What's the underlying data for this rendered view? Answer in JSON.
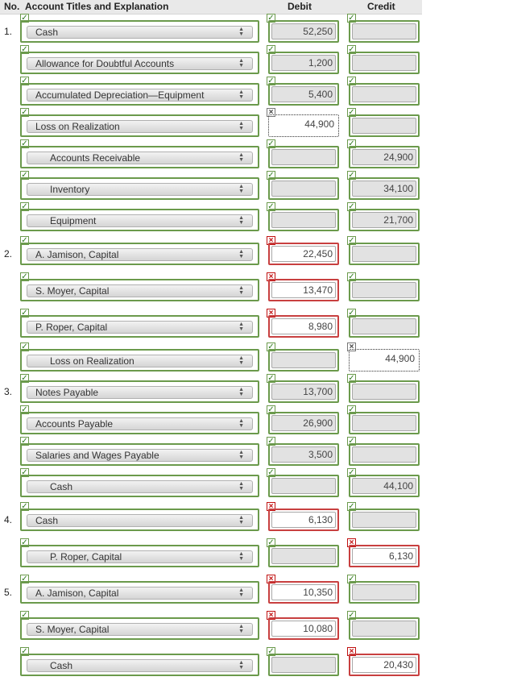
{
  "header": {
    "no": "No.",
    "titles": "Account Titles and Explanation",
    "debit": "Debit",
    "credit": "Credit"
  },
  "colors": {
    "ok": "#6b9a4c",
    "error": "#c84040"
  },
  "icons": {
    "ok": "checkmark-icon",
    "error": "x-mark-icon",
    "select": "select-arrows-icon"
  },
  "rows": [
    {
      "num": "1.",
      "account": "Cash",
      "indent": false,
      "debit": "52,250",
      "credit": "",
      "acct_status": "ok",
      "debit_status": "ok",
      "credit_status": "ok"
    },
    {
      "num": "",
      "account": "Allowance for Doubtful Accounts",
      "indent": false,
      "debit": "1,200",
      "credit": "",
      "acct_status": "ok",
      "debit_status": "ok",
      "credit_status": "ok"
    },
    {
      "num": "",
      "account": "Accumulated Depreciation—Equipment",
      "indent": false,
      "debit": "5,400",
      "credit": "",
      "acct_status": "ok",
      "debit_status": "ok",
      "credit_status": "ok"
    },
    {
      "num": "",
      "account": "Loss on Realization",
      "indent": false,
      "debit": "44,900",
      "credit": "",
      "acct_status": "ok",
      "debit_status": "partial",
      "credit_status": "ok"
    },
    {
      "num": "",
      "account": "Accounts Receivable",
      "indent": true,
      "debit": "",
      "credit": "24,900",
      "acct_status": "ok",
      "debit_status": "ok",
      "credit_status": "ok"
    },
    {
      "num": "",
      "account": "Inventory",
      "indent": true,
      "debit": "",
      "credit": "34,100",
      "acct_status": "ok",
      "debit_status": "ok",
      "credit_status": "ok"
    },
    {
      "num": "",
      "account": "Equipment",
      "indent": true,
      "debit": "",
      "credit": "21,700",
      "acct_status": "ok",
      "debit_status": "ok",
      "credit_status": "ok"
    },
    {
      "num": "2.",
      "account": "A. Jamison, Capital",
      "indent": false,
      "debit": "22,450",
      "credit": "",
      "acct_status": "ok",
      "debit_status": "error",
      "credit_status": "ok"
    },
    {
      "num": "",
      "account": "S. Moyer, Capital",
      "indent": false,
      "debit": "13,470",
      "credit": "",
      "acct_status": "ok",
      "debit_status": "error",
      "credit_status": "ok"
    },
    {
      "num": "",
      "account": "P. Roper, Capital",
      "indent": false,
      "debit": "8,980",
      "credit": "",
      "acct_status": "ok",
      "debit_status": "error",
      "credit_status": "ok"
    },
    {
      "num": "",
      "account": "Loss on Realization",
      "indent": true,
      "debit": "",
      "credit": "44,900",
      "acct_status": "ok",
      "debit_status": "ok",
      "credit_status": "partial"
    },
    {
      "num": "3.",
      "account": "Notes Payable",
      "indent": false,
      "debit": "13,700",
      "credit": "",
      "acct_status": "ok",
      "debit_status": "ok",
      "credit_status": "ok"
    },
    {
      "num": "",
      "account": "Accounts Payable",
      "indent": false,
      "debit": "26,900",
      "credit": "",
      "acct_status": "ok",
      "debit_status": "ok",
      "credit_status": "ok"
    },
    {
      "num": "",
      "account": "Salaries and Wages Payable",
      "indent": false,
      "debit": "3,500",
      "credit": "",
      "acct_status": "ok",
      "debit_status": "ok",
      "credit_status": "ok"
    },
    {
      "num": "",
      "account": "Cash",
      "indent": true,
      "debit": "",
      "credit": "44,100",
      "acct_status": "ok",
      "debit_status": "ok",
      "credit_status": "ok"
    },
    {
      "num": "4.",
      "account": "Cash",
      "indent": false,
      "debit": "6,130",
      "credit": "",
      "acct_status": "ok",
      "debit_status": "error",
      "credit_status": "ok"
    },
    {
      "num": "",
      "account": "P. Roper, Capital",
      "indent": true,
      "debit": "",
      "credit": "6,130",
      "acct_status": "ok",
      "debit_status": "ok",
      "credit_status": "error"
    },
    {
      "num": "5.",
      "account": "A. Jamison, Capital",
      "indent": false,
      "debit": "10,350",
      "credit": "",
      "acct_status": "ok",
      "debit_status": "error",
      "credit_status": "ok"
    },
    {
      "num": "",
      "account": "S. Moyer, Capital",
      "indent": false,
      "debit": "10,080",
      "credit": "",
      "acct_status": "ok",
      "debit_status": "error",
      "credit_status": "ok"
    },
    {
      "num": "",
      "account": "Cash",
      "indent": true,
      "debit": "",
      "credit": "20,430",
      "acct_status": "ok",
      "debit_status": "ok",
      "credit_status": "error"
    }
  ]
}
